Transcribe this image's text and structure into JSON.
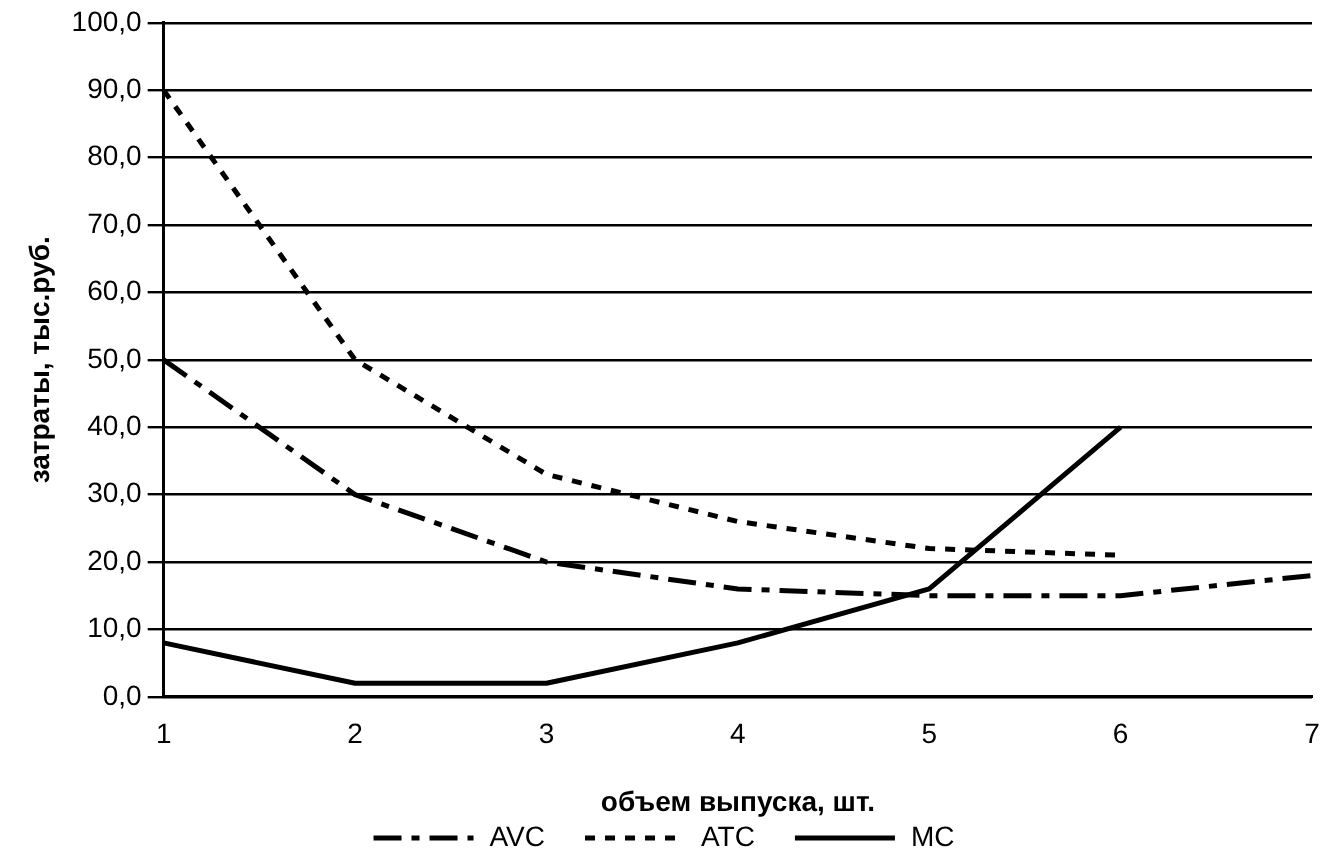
{
  "chart_data": {
    "type": "line",
    "xlabel": "объем выпуска, шт.",
    "ylabel": "затраты, тыс.руб.",
    "x": [
      1,
      2,
      3,
      4,
      5,
      6,
      7
    ],
    "series": [
      {
        "name": "AVC",
        "color": "#000000",
        "line_style": "dashed",
        "values": [
          50,
          30,
          20,
          16,
          15,
          15,
          18
        ]
      },
      {
        "name": "ATC",
        "color": "#000000",
        "line_style": "dotted",
        "values": [
          90,
          50,
          33,
          26,
          22,
          21,
          null
        ]
      },
      {
        "name": "MC",
        "color": "#000000",
        "line_style": "solid",
        "values": [
          8,
          2,
          2,
          8,
          16,
          40,
          null
        ]
      }
    ],
    "xlim": [
      1,
      7
    ],
    "xticks": [
      1,
      2,
      3,
      4,
      5,
      6,
      7
    ],
    "ylim": [
      0,
      100
    ],
    "yticks": [
      {
        "value": 0,
        "label": "0,0"
      },
      {
        "value": 10,
        "label": "10,0"
      },
      {
        "value": 20,
        "label": "20,0"
      },
      {
        "value": 30,
        "label": "30,0"
      },
      {
        "value": 40,
        "label": "40,0"
      },
      {
        "value": 50,
        "label": "50,0"
      },
      {
        "value": 60,
        "label": "60,0"
      },
      {
        "value": 70,
        "label": "70,0"
      },
      {
        "value": 80,
        "label": "80,0"
      },
      {
        "value": 90,
        "label": "90,0"
      },
      {
        "value": 100,
        "label": "100,0"
      }
    ],
    "grid": "y",
    "legend": "bottom",
    "marker": "none"
  }
}
